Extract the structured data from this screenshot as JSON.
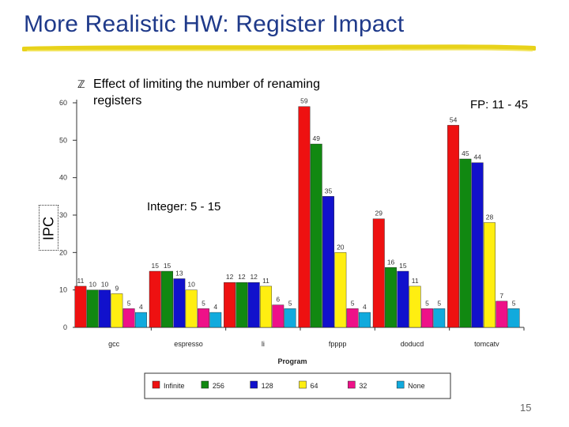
{
  "slide": {
    "title": "More Realistic HW: Register Impact",
    "bullet": "Effect of limiting the number of renaming registers",
    "fp_callout": "FP: 11 - 45",
    "int_callout": "Integer: 5 - 15",
    "page_number": "15"
  },
  "colors": {
    "title": "#1f3a8a",
    "underline": "#e8d21a",
    "series": [
      "#ee1111",
      "#118811",
      "#1111cc",
      "#ffee11",
      "#ee1188",
      "#11aadd"
    ]
  },
  "chart_data": {
    "type": "bar",
    "categories": [
      "gcc",
      "espresso",
      "li",
      "fpppp",
      "doducd",
      "tomcatv"
    ],
    "series": [
      {
        "name": "Infinite",
        "values": [
          11,
          15,
          12,
          59,
          29,
          54
        ]
      },
      {
        "name": "256",
        "values": [
          10,
          15,
          12,
          49,
          16,
          45
        ]
      },
      {
        "name": "128",
        "values": [
          10,
          13,
          12,
          35,
          15,
          44
        ]
      },
      {
        "name": "64",
        "values": [
          9,
          10,
          11,
          20,
          11,
          28
        ]
      },
      {
        "name": "32",
        "values": [
          5,
          5,
          6,
          5,
          5,
          7
        ]
      },
      {
        "name": "None",
        "values": [
          4,
          4,
          5,
          4,
          5,
          5
        ]
      }
    ],
    "xlabel": "Program",
    "ylabel": "IPC",
    "ylim": [
      0,
      60
    ],
    "yticks": [
      0,
      10,
      20,
      30,
      40,
      50,
      60
    ],
    "legend_position": "bottom"
  }
}
